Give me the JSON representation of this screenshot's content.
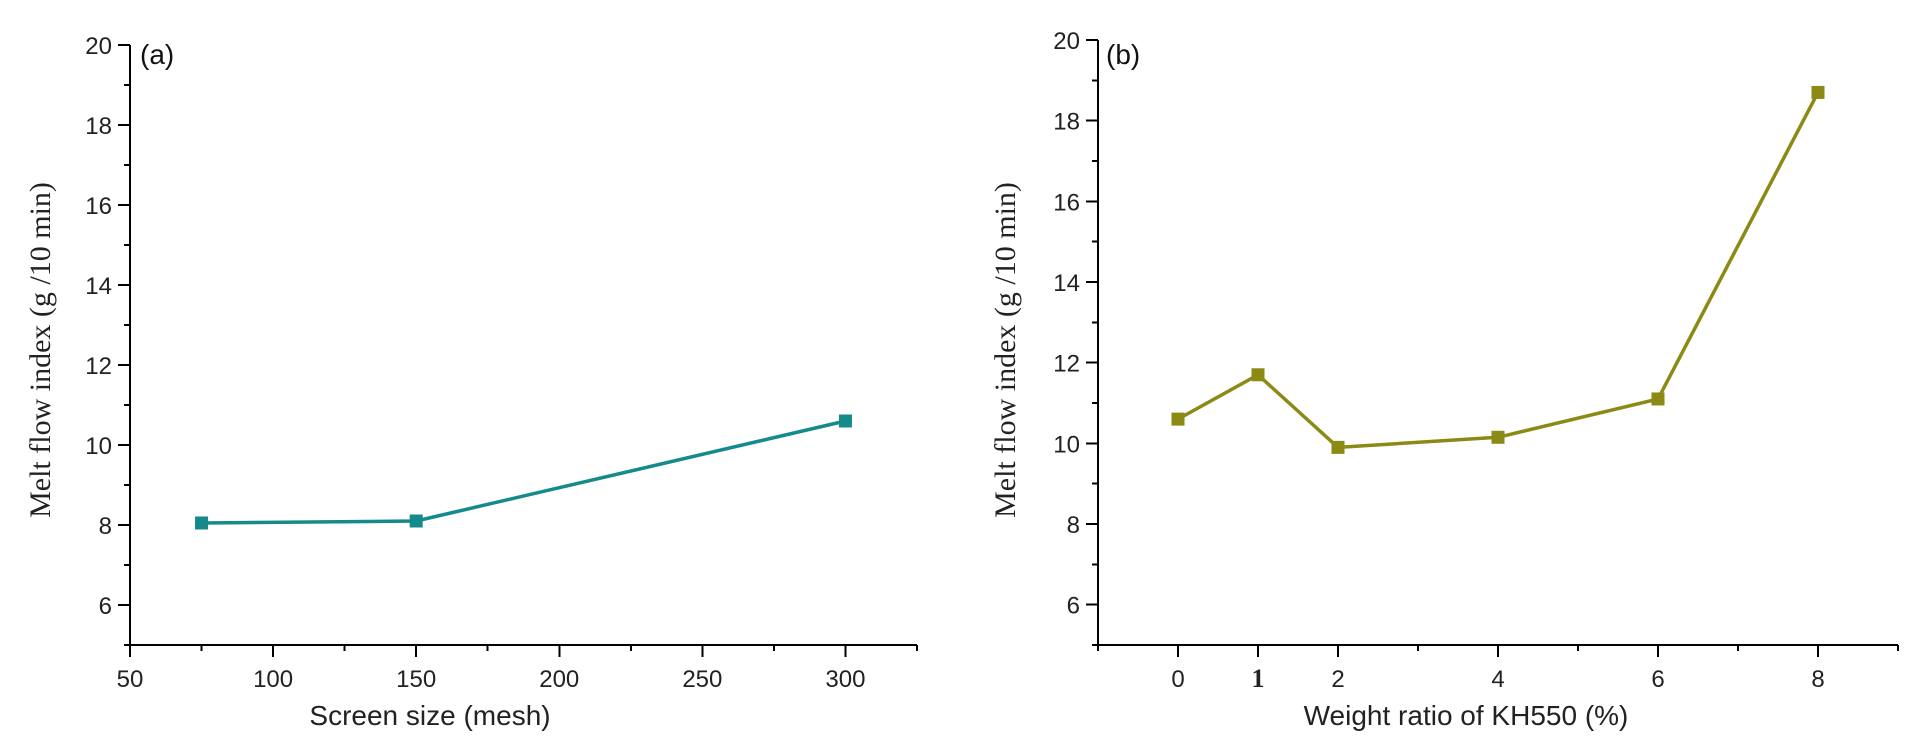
{
  "chart_data": [
    {
      "type": "line",
      "panel_label": "(a)",
      "xlabel": "Screen size (mesh)",
      "ylabel": "Melt flow index (g /10 min)",
      "xlim": [
        50,
        325
      ],
      "ylim": [
        5,
        20
      ],
      "xticks": [
        50,
        100,
        150,
        200,
        250,
        300
      ],
      "xtick_labels": [
        "50",
        "100",
        "150",
        "200",
        "250",
        "300"
      ],
      "xminor_step": 25,
      "yticks": [
        6,
        8,
        10,
        12,
        14,
        16,
        18,
        20
      ],
      "ytick_labels": [
        "6",
        "8",
        "10",
        "12",
        "14",
        "16",
        "18",
        "20"
      ],
      "yminor_step": 1,
      "series": [
        {
          "name": "Melt flow index",
          "color": "#148a8a",
          "marker": "square",
          "x": [
            75,
            150,
            300
          ],
          "y": [
            8.05,
            8.1,
            10.6
          ]
        }
      ]
    },
    {
      "type": "line",
      "panel_label": "(b)",
      "xlabel": "Weight ratio of KH550 (%)",
      "ylabel": "Melt flow index (g /10 min)",
      "xlim": [
        -1,
        9
      ],
      "ylim": [
        5,
        20
      ],
      "xticks": [
        0,
        1,
        2,
        4,
        6,
        8
      ],
      "xtick_labels": [
        "0",
        "1",
        "2",
        "4",
        "6",
        "8"
      ],
      "xminor_step": 1,
      "yticks": [
        6,
        8,
        10,
        12,
        14,
        16,
        18,
        20
      ],
      "ytick_labels": [
        "6",
        "8",
        "10",
        "12",
        "14",
        "16",
        "18",
        "20"
      ],
      "yminor_step": 1,
      "series": [
        {
          "name": "Melt flow index",
          "color": "#8a8a14",
          "marker": "square",
          "x": [
            0,
            1,
            2,
            4,
            6,
            8
          ],
          "y": [
            10.6,
            11.7,
            9.9,
            10.15,
            11.1,
            18.7
          ]
        }
      ]
    }
  ]
}
